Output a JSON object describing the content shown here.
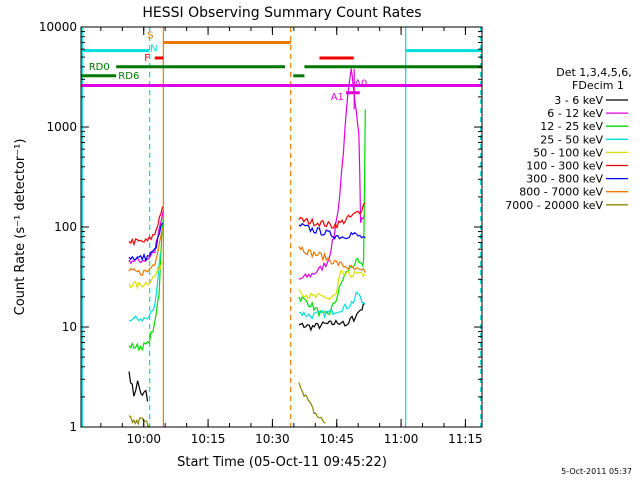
{
  "chart_data": {
    "type": "line",
    "title": "HESSI Observing Summary Count Rates",
    "xlabel": "Start Time (05-Oct-11 09:45:22)",
    "ylabel": "Count Rate (s⁻¹ detector⁻¹)",
    "yscale": "log",
    "ylim": [
      1,
      10000
    ],
    "xlim_min": [
      0,
      93.5
    ],
    "x_ticks": [
      {
        "min": 14.63,
        "label": "10:00"
      },
      {
        "min": 29.63,
        "label": "10:15"
      },
      {
        "min": 44.63,
        "label": "10:30"
      },
      {
        "min": 59.63,
        "label": "10:45"
      },
      {
        "min": 74.63,
        "label": "11:00"
      },
      {
        "min": 89.63,
        "label": "11:15"
      }
    ],
    "y_ticks": [
      {
        "value": 1,
        "label": "1"
      },
      {
        "value": 10,
        "label": "10"
      },
      {
        "value": 100,
        "label": "100"
      },
      {
        "value": 1000,
        "label": "1000"
      },
      {
        "value": 10000,
        "label": "10000"
      }
    ],
    "legend_header": [
      "Det 1,3,4,5,6,",
      "FDecim 1"
    ],
    "legend_position": "right",
    "footer": "5-Oct-2011 05:37",
    "series": [
      {
        "name": "3 - 6 keV",
        "color": "#000000",
        "segments": [
          [
            [
              11.2,
              3.6
            ],
            [
              12.3,
              2.1
            ],
            [
              13.2,
              2.8
            ],
            [
              14.3,
              2.0
            ],
            [
              15.1,
              2.3
            ],
            [
              15.5,
              1.8
            ]
          ],
          [
            [
              50.8,
              10.5
            ],
            [
              54.0,
              10.0
            ],
            [
              56.8,
              10.6
            ],
            [
              58.6,
              10.8
            ],
            [
              61.1,
              11.5
            ],
            [
              62.0,
              9.8
            ],
            [
              62.8,
              11.8
            ],
            [
              63.6,
              12.3
            ],
            [
              65.2,
              15.0
            ],
            [
              66.2,
              17.0
            ]
          ]
        ]
      },
      {
        "name": "6 - 12 keV",
        "color": "#e000e0",
        "segments": [
          [
            [
              11.2,
              47
            ],
            [
              13.5,
              46
            ],
            [
              15.5,
              48
            ],
            [
              17.2,
              58
            ],
            [
              18.6,
              108
            ],
            [
              19.2,
              145
            ]
          ],
          [
            [
              50.8,
              30
            ],
            [
              53.5,
              33
            ],
            [
              55.8,
              38
            ],
            [
              57.5,
              45
            ],
            [
              59.0,
              80
            ],
            [
              60.3,
              200
            ],
            [
              61.2,
              600
            ],
            [
              62.2,
              2000
            ],
            [
              63.0,
              3600
            ],
            [
              63.5,
              2600
            ],
            [
              64.2,
              1500
            ],
            [
              64.8,
              900
            ],
            [
              65.2,
              115
            ],
            [
              65.8,
              122
            ],
            [
              66.3,
              130
            ]
          ]
        ]
      },
      {
        "name": "12 - 25 keV",
        "color": "#00dd00",
        "segments": [
          [
            [
              11.2,
              6.5
            ],
            [
              13.5,
              6.3
            ],
            [
              15.5,
              6.7
            ],
            [
              17.2,
              10.5
            ],
            [
              18.2,
              22
            ],
            [
              18.8,
              80
            ],
            [
              19.2,
              120
            ]
          ],
          [
            [
              50.8,
              20
            ],
            [
              53.5,
              17
            ],
            [
              55.5,
              14
            ],
            [
              56.5,
              13
            ],
            [
              58.0,
              14
            ],
            [
              59.5,
              19
            ],
            [
              61.0,
              30
            ],
            [
              62.3,
              37
            ],
            [
              63.5,
              42
            ],
            [
              64.5,
              45
            ],
            [
              65.5,
              40
            ],
            [
              65.9,
              46
            ],
            [
              66.3,
              1500
            ]
          ]
        ]
      },
      {
        "name": "25 - 50 keV",
        "color": "#00dddd",
        "segments": [
          [
            [
              11.2,
              11.5
            ],
            [
              13.5,
              12.2
            ],
            [
              15.5,
              12.0
            ],
            [
              17.2,
              16
            ],
            [
              18.5,
              55
            ]
          ],
          [
            [
              50.8,
              14
            ],
            [
              53.5,
              13
            ],
            [
              56.0,
              13.5
            ],
            [
              58.0,
              14
            ],
            [
              60.0,
              15
            ],
            [
              62.0,
              16
            ],
            [
              63.5,
              18
            ],
            [
              64.5,
              22
            ],
            [
              65.5,
              18
            ],
            [
              66.3,
              17
            ]
          ]
        ]
      },
      {
        "name": "50 - 100 keV",
        "color": "#dddd00",
        "segments": [
          [
            [
              11.2,
              27
            ],
            [
              13.5,
              26
            ],
            [
              15.5,
              28
            ],
            [
              17.2,
              32
            ],
            [
              19.0,
              45
            ]
          ],
          [
            [
              50.8,
              24
            ],
            [
              52.5,
              21
            ],
            [
              54.0,
              20
            ],
            [
              55.5,
              20
            ],
            [
              57.0,
              20
            ],
            [
              58.0,
              19
            ],
            [
              59.5,
              21
            ],
            [
              60.5,
              34
            ],
            [
              62.0,
              33
            ],
            [
              63.5,
              34
            ],
            [
              65.0,
              33
            ],
            [
              66.3,
              34
            ]
          ]
        ]
      },
      {
        "name": "100 - 300 keV",
        "color": "#ee0000",
        "segments": [
          [
            [
              11.2,
              72
            ],
            [
              13.5,
              71
            ],
            [
              15.5,
              72
            ],
            [
              17.2,
              85
            ],
            [
              19.0,
              160
            ]
          ],
          [
            [
              50.8,
              118
            ],
            [
              53.5,
              113
            ],
            [
              56.0,
              110
            ],
            [
              58.5,
              103
            ],
            [
              60.5,
              110
            ],
            [
              62.0,
              120
            ],
            [
              63.5,
              130
            ],
            [
              65.0,
              145
            ],
            [
              66.3,
              175
            ]
          ]
        ]
      },
      {
        "name": "300 - 800 keV",
        "color": "#0000ee",
        "segments": [
          [
            [
              11.2,
              50
            ],
            [
              13.5,
              49
            ],
            [
              15.5,
              50
            ],
            [
              17.2,
              58
            ],
            [
              19.0,
              110
            ]
          ],
          [
            [
              50.8,
              105
            ],
            [
              53.5,
              95
            ],
            [
              56.0,
              90
            ],
            [
              58.0,
              85
            ],
            [
              59.5,
              82
            ],
            [
              61.0,
              80
            ],
            [
              63.0,
              86
            ],
            [
              65.0,
              80
            ],
            [
              66.3,
              78
            ]
          ]
        ]
      },
      {
        "name": "800 - 7000 keV",
        "color": "#ee7700",
        "segments": [
          [
            [
              11.2,
              36
            ],
            [
              13.5,
              35
            ],
            [
              15.5,
              36
            ],
            [
              17.2,
              44
            ],
            [
              19.0,
              98
            ]
          ],
          [
            [
              50.8,
              64
            ],
            [
              53.5,
              55
            ],
            [
              56.0,
              52
            ],
            [
              58.0,
              47
            ],
            [
              60.0,
              43
            ],
            [
              62.0,
              40
            ],
            [
              63.5,
              38
            ],
            [
              65.0,
              36
            ],
            [
              66.3,
              35
            ]
          ]
        ]
      },
      {
        "name": "7000 - 20000 keV",
        "color": "#888800",
        "segments": [
          [
            [
              11.2,
              1.3
            ],
            [
              12.0,
              1.15
            ],
            [
              13.0,
              1.1
            ],
            [
              14.0,
              1.2
            ],
            [
              15.0,
              1.1
            ],
            [
              16.0,
              1.05
            ]
          ],
          [
            [
              50.8,
              2.8
            ],
            [
              52.0,
              2.2
            ],
            [
              53.0,
              1.8
            ],
            [
              54.0,
              1.5
            ],
            [
              55.0,
              1.3
            ],
            [
              56.0,
              1.2
            ],
            [
              57.0,
              1.1
            ]
          ]
        ]
      }
    ],
    "state_bars": [
      {
        "label": "S",
        "color": "#ee7700",
        "y": 7000,
        "from": 19.2,
        "to": 48.9
      },
      {
        "label": "N",
        "color": "#00dddd",
        "y": 5800,
        "from": 0,
        "to": 16.0
      },
      {
        "label": "",
        "color": "#00dddd",
        "y": 5800,
        "from": 75.7,
        "to": 93.5
      },
      {
        "label": "F",
        "color": "#ee0000",
        "y": 4900,
        "from": 17.2,
        "to": 19.2
      },
      {
        "label": "",
        "color": "#ee0000",
        "y": 4900,
        "from": 55.6,
        "to": 63.6
      },
      {
        "label": "RD0",
        "color": "#007700",
        "y": 4000,
        "from": 8.2,
        "to": 47.6
      },
      {
        "label": "",
        "color": "#007700",
        "y": 4000,
        "from": 52.1,
        "to": 93.5
      },
      {
        "label": "RD6",
        "color": "#007700",
        "y": 3250,
        "from": 0,
        "to": 8.2
      },
      {
        "label": "",
        "color": "#007700",
        "y": 3250,
        "from": 49.5,
        "to": 52.1
      },
      {
        "label": "A1",
        "color": "#e000e0",
        "y": 2600,
        "from": 0,
        "to": 93.5
      },
      {
        "label": "A0",
        "color": "#e000e0",
        "y": 2200,
        "from": 61.8,
        "to": 65.0
      }
    ],
    "vertical_markers": [
      {
        "color": "#00dddd",
        "style": "solid",
        "min": 0.3
      },
      {
        "color": "#00dddd",
        "style": "dashed",
        "min": 16.0
      },
      {
        "color": "#ee7700",
        "style": "solid",
        "min": 19.2
      },
      {
        "color": "#ee7700",
        "style": "dashed",
        "min": 48.9
      },
      {
        "color": "#00dddd",
        "style": "solid",
        "min": 75.7
      },
      {
        "color": "#00dddd",
        "style": "dashed",
        "min": 93.2
      },
      {
        "color": "#ee7700",
        "style": "solid",
        "min": 11.2,
        "from": 1,
        "to": 0.9
      },
      {
        "color": "#e000e0",
        "style": "solid",
        "min": 63.7,
        "from": 1500,
        "to": 3800
      }
    ]
  }
}
